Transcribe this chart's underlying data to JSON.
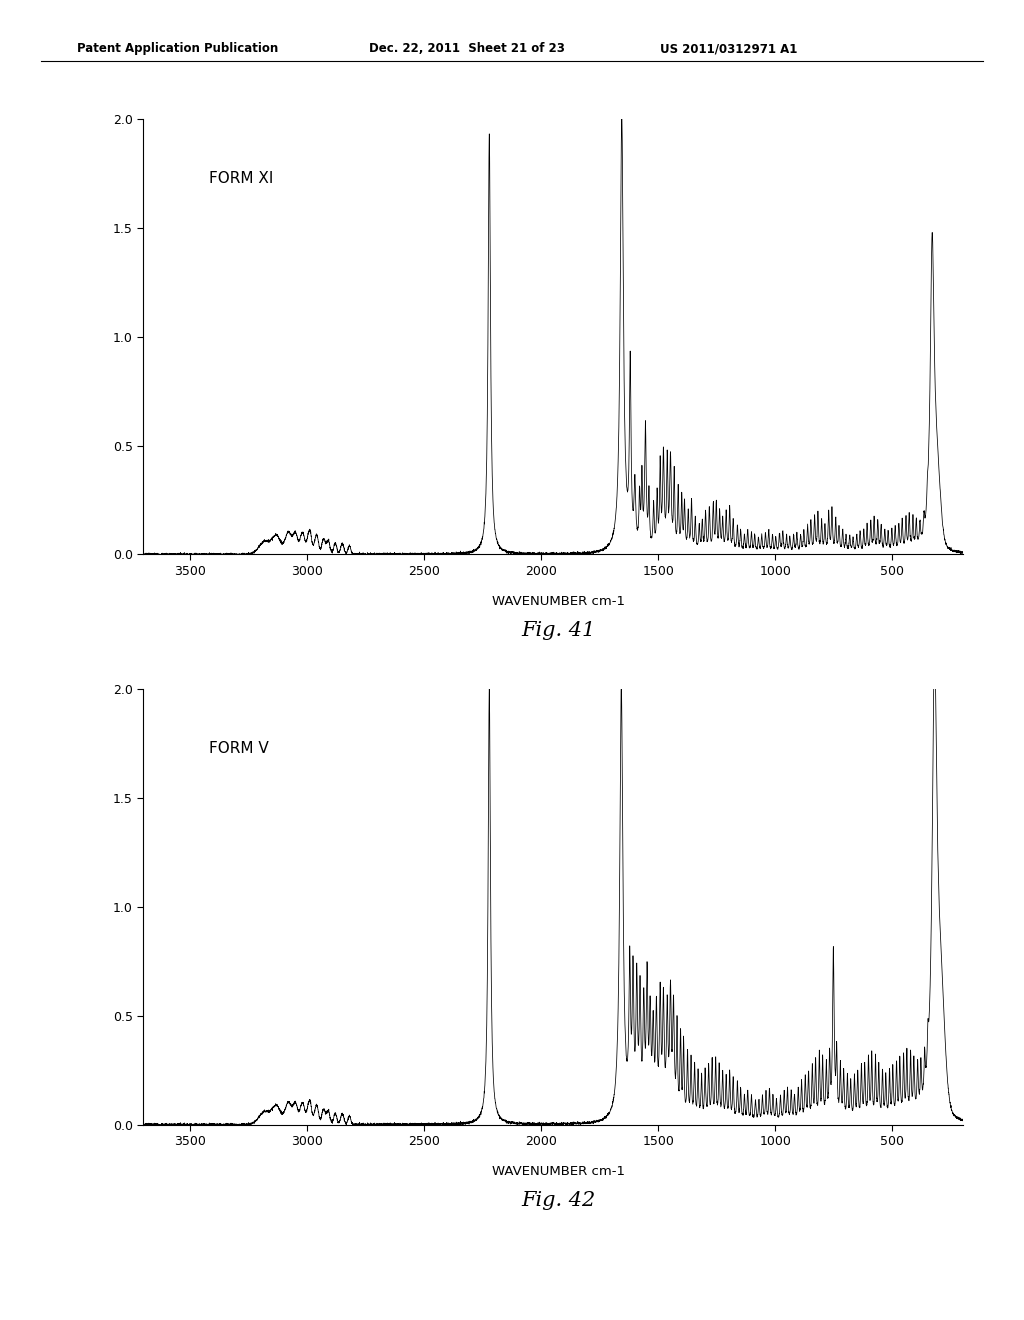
{
  "header_left": "Patent Application Publication",
  "header_mid": "Dec. 22, 2011  Sheet 21 of 23",
  "header_right": "US 2011/0312971 A1",
  "fig1_label": "FORM XI",
  "fig1_caption": "Fig. 41",
  "fig2_label": "FORM V",
  "fig2_caption": "Fig. 42",
  "xlabel": "WAVENUMBER cm-1",
  "ylim": [
    0.0,
    2.0
  ],
  "yticks": [
    0.0,
    0.5,
    1.0,
    1.5,
    2.0
  ],
  "xlim": [
    3700,
    200
  ],
  "xticks": [
    3500,
    3000,
    2500,
    2000,
    1500,
    1000,
    500
  ],
  "bg_color": "#ffffff",
  "line_color": "#000000"
}
